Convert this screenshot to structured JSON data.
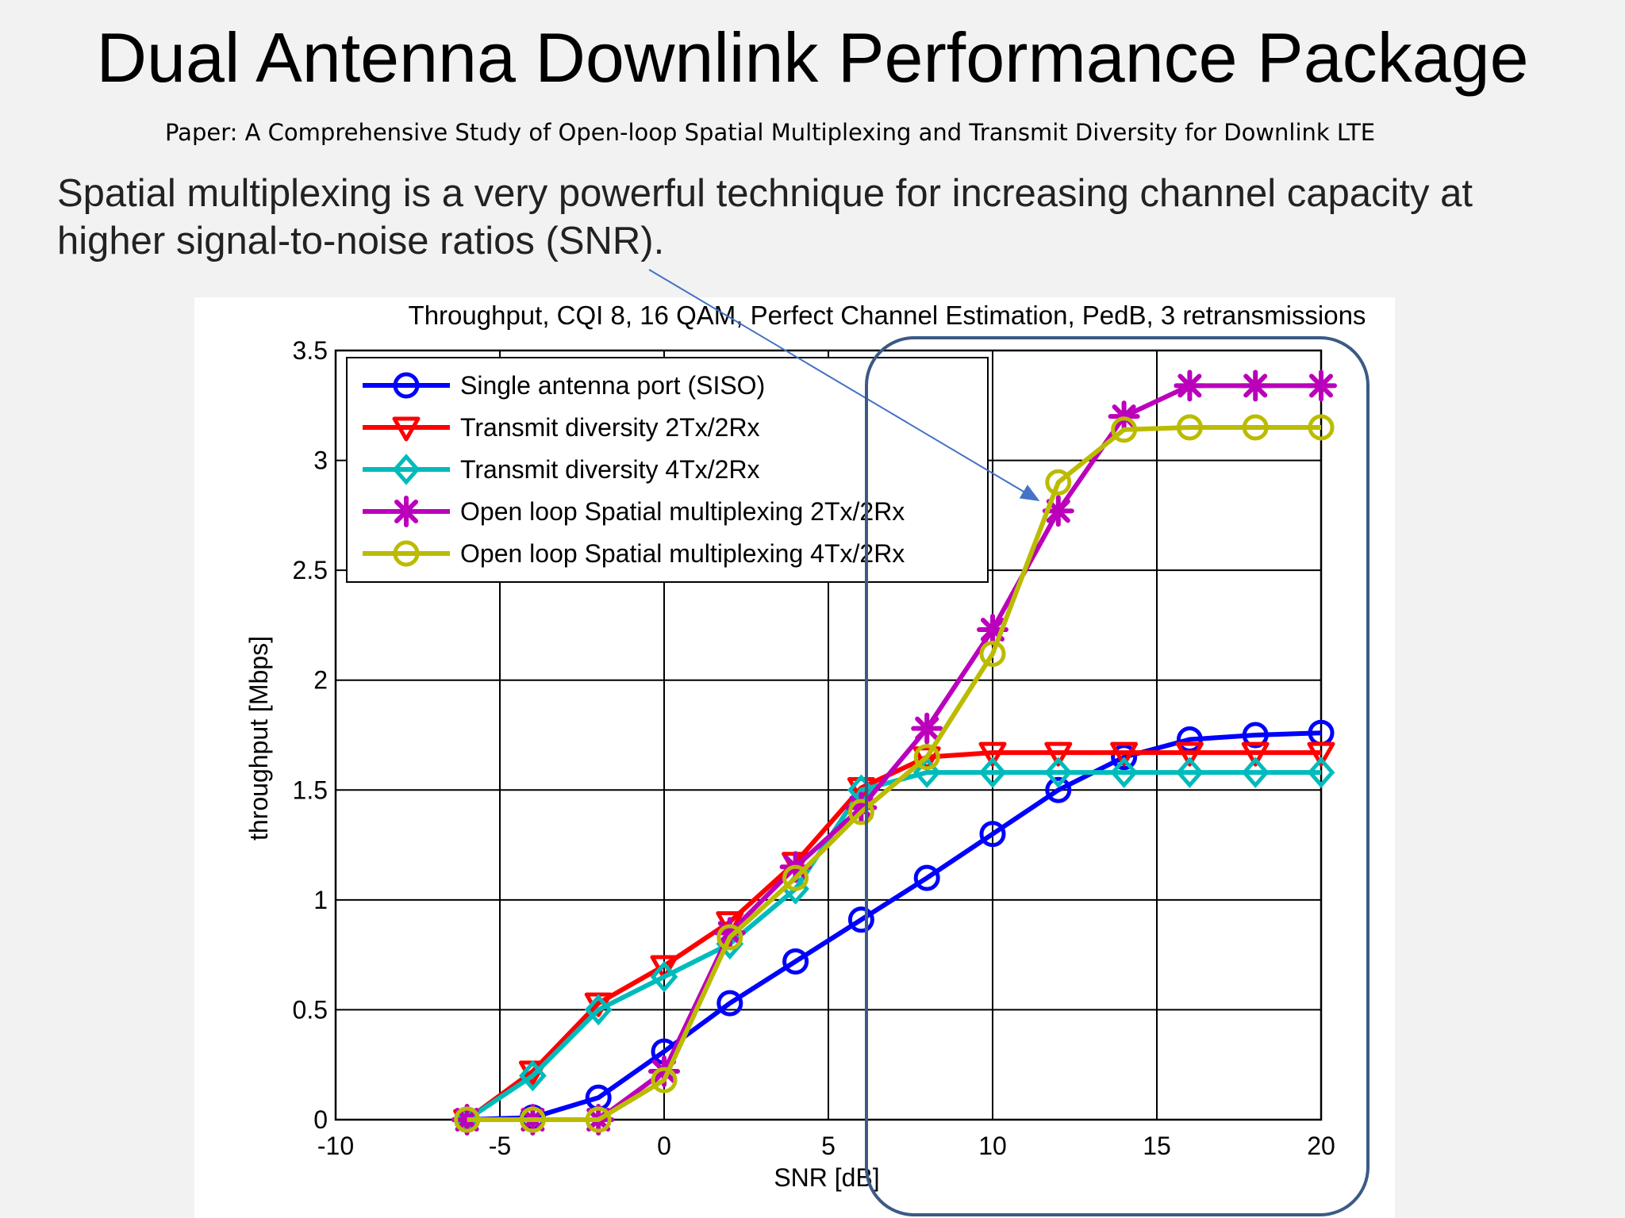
{
  "slide": {
    "title": "Dual Antenna Downlink Performance Package",
    "paper_ref": "Paper: A Comprehensive Study of Open-loop Spatial Multiplexing and Transmit Diversity for Downlink LTE",
    "statement": "Spatial multiplexing is a very powerful technique for increasing channel capacity at higher signal-to-noise ratios (SNR)."
  },
  "colors": {
    "background": "#f2f2f2",
    "highlight": "#3b5a85",
    "arrow": "#4472c4"
  },
  "chart_data": {
    "type": "line",
    "title": "Throughput, CQI 8, 16 QAM, Perfect Channel Estimation, PedB,  3 retransmissions",
    "xlabel": "SNR [dB]",
    "ylabel": "throughput [Mbps]",
    "xlim": [
      -10,
      20
    ],
    "ylim": [
      0,
      3.5
    ],
    "x_ticks": [
      -10,
      -5,
      0,
      5,
      10,
      15,
      20
    ],
    "x_tick_labels": [
      "-10",
      "-5",
      "0",
      "5",
      "10",
      "15",
      "20"
    ],
    "y_ticks": [
      0,
      0.5,
      1,
      1.5,
      2,
      2.5,
      3,
      3.5
    ],
    "y_tick_labels": [
      "0",
      "0.5",
      "1",
      "1.5",
      "2",
      "2.5",
      "3",
      "3.5"
    ],
    "grid": true,
    "legend_position": "top-left",
    "x": [
      -6,
      -4,
      -2,
      0,
      2,
      4,
      6,
      8,
      10,
      12,
      14,
      16,
      18,
      20
    ],
    "series": [
      {
        "name": "Single antenna port (SISO)",
        "color": "#0000ff",
        "marker": "circle",
        "values": [
          0,
          0.01,
          0.1,
          0.31,
          0.53,
          0.72,
          0.91,
          1.1,
          1.3,
          1.5,
          1.65,
          1.73,
          1.75,
          1.76
        ]
      },
      {
        "name": "Transmit diversity 2Tx/2Rx",
        "color": "#ff0000",
        "marker": "triangle-down",
        "values": [
          0,
          0.22,
          0.53,
          0.7,
          0.9,
          1.17,
          1.51,
          1.65,
          1.67,
          1.67,
          1.67,
          1.67,
          1.67,
          1.67
        ]
      },
      {
        "name": "Transmit diversity 4Tx/2Rx",
        "color": "#00bbbb",
        "marker": "diamond",
        "values": [
          0,
          0.2,
          0.5,
          0.65,
          0.8,
          1.05,
          1.5,
          1.58,
          1.58,
          1.58,
          1.58,
          1.58,
          1.58,
          1.58
        ]
      },
      {
        "name": "Open loop Spatial multiplexing 2Tx/2Rx",
        "color": "#bb00bb",
        "marker": "star",
        "values": [
          0,
          0,
          0,
          0.22,
          0.85,
          1.15,
          1.42,
          1.78,
          2.23,
          2.77,
          3.2,
          3.34,
          3.34,
          3.34
        ]
      },
      {
        "name": "Open loop Spatial multiplexing 4Tx/2Rx",
        "color": "#bbbb00",
        "marker": "circle",
        "values": [
          0,
          0,
          0,
          0.18,
          0.83,
          1.1,
          1.4,
          1.65,
          2.12,
          2.9,
          3.14,
          3.15,
          3.15,
          3.15
        ]
      }
    ]
  }
}
